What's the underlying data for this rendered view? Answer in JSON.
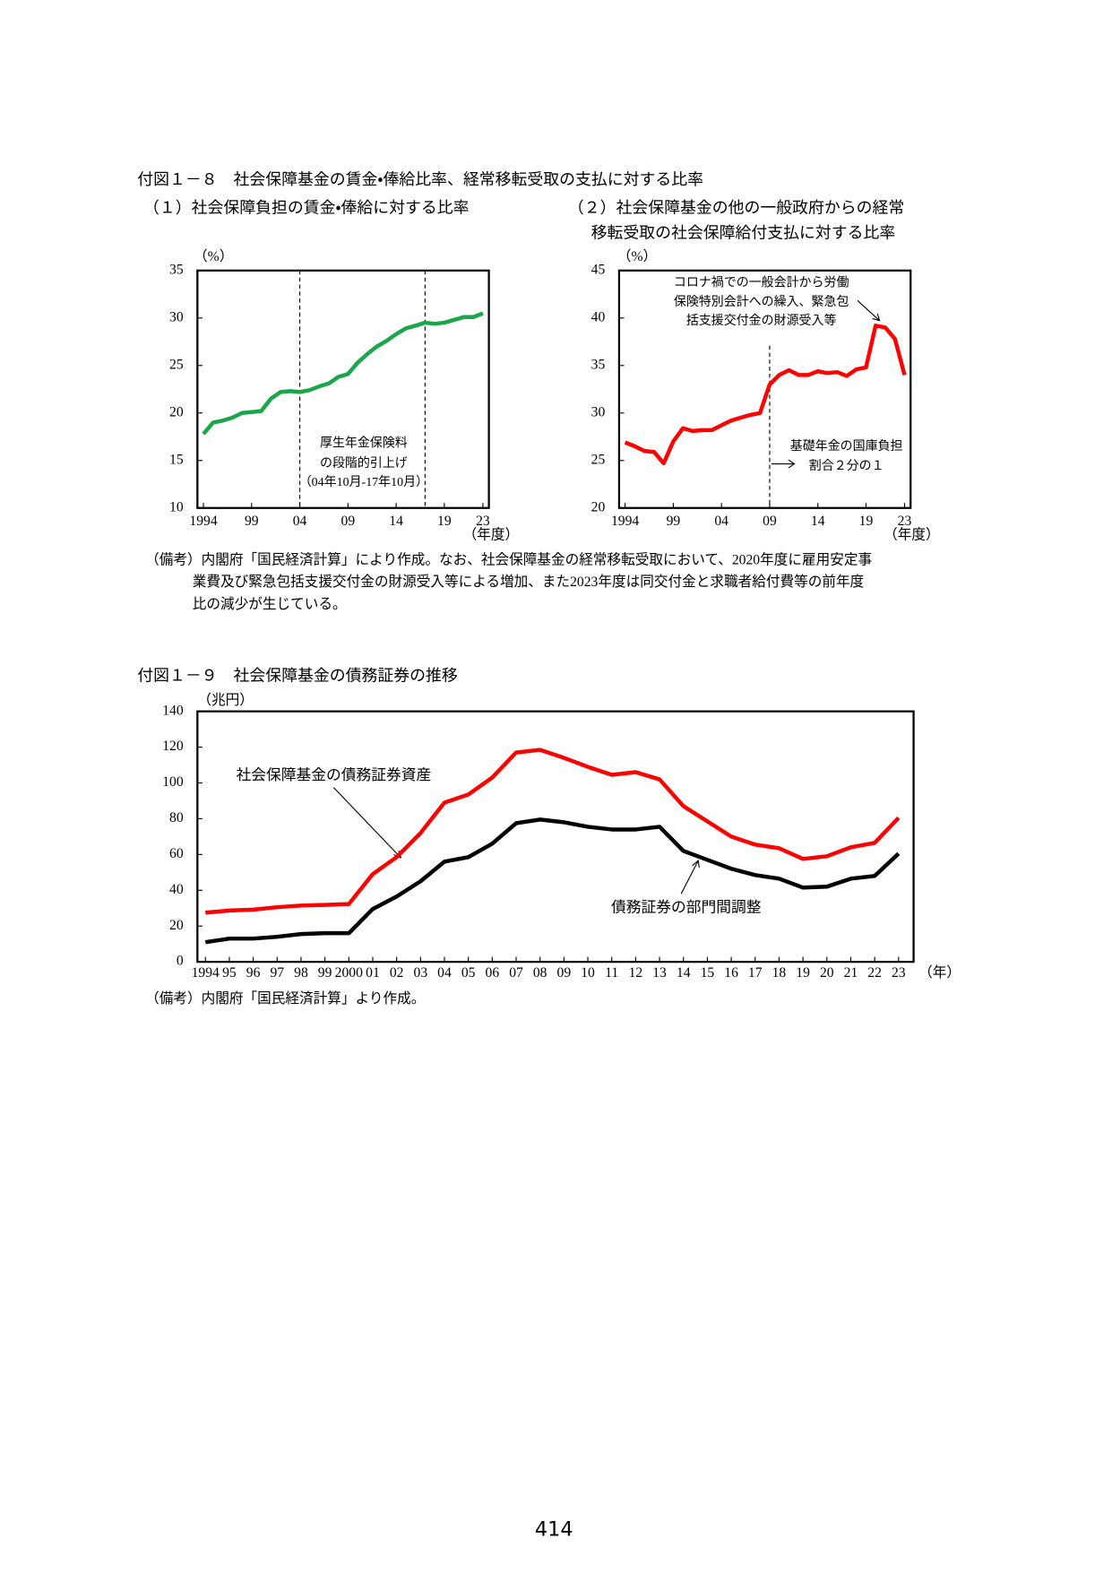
{
  "figure_8_title": "付図１－８　社会保障基金の賃金・俸給比率、経常移転受取の支払に対する比率",
  "notes_8": [
    "（備考）内閣府「国民経済計算」により作成。なお、社会保障基金の経常移転受取において、2020年度に雇用安定事",
    "業費及び緊急包括支援交付金の財源受入等による増加、また2023年度は同交付金と求職者給付費等の前年度",
    "比の減少が生じている。"
  ],
  "notes_9": "（備考）内閣府「国民経済計算」より作成。",
  "page_number": "414",
  "chart_data": [
    {
      "type": "line",
      "title": [
        "（１）社会保障負担の賃金・俸給に対する比率"
      ],
      "y_unit": "（%）",
      "x_unit": "（年度）",
      "x": [
        1994,
        1995,
        1996,
        1997,
        1998,
        1999,
        2000,
        2001,
        2002,
        2003,
        2004,
        2005,
        2006,
        2007,
        2008,
        2009,
        2010,
        2011,
        2012,
        2013,
        2014,
        2015,
        2016,
        2017,
        2018,
        2019,
        2020,
        2021,
        2022,
        2023
      ],
      "xlim": [
        1994,
        2023
      ],
      "xticks": [
        {
          "value": 1994,
          "label": "1994"
        },
        {
          "value": 1999,
          "label": "99"
        },
        {
          "value": 2004,
          "label": "04"
        },
        {
          "value": 2009,
          "label": "09"
        },
        {
          "value": 2014,
          "label": "14"
        },
        {
          "value": 2019,
          "label": "19"
        },
        {
          "value": 2023,
          "label": "23"
        }
      ],
      "ylim": [
        10,
        35
      ],
      "yticks": [
        10,
        15,
        20,
        25,
        30,
        35
      ],
      "reference_lines": [
        2004,
        2017
      ],
      "series": [
        {
          "color": "#1aa64a",
          "values": [
            17.8,
            19.0,
            19.2,
            19.5,
            20.0,
            20.1,
            20.2,
            21.5,
            22.2,
            22.3,
            22.2,
            22.4,
            22.8,
            23.1,
            23.8,
            24.1,
            25.3,
            26.2,
            27.0,
            27.6,
            28.3,
            28.9,
            29.2,
            29.5,
            29.4,
            29.5,
            29.8,
            30.1,
            30.1,
            30.5
          ]
        }
      ],
      "annotations": [
        [
          "厚生年金保険料",
          "の段階的引上げ",
          "（04年10月-17年10月）"
        ]
      ]
    },
    {
      "type": "line",
      "title": [
        "（２）社会保障基金の他の一般政府からの経常",
        "移転受取の社会保障給付支払に対する比率"
      ],
      "y_unit": "（%）",
      "x_unit": "（年度）",
      "x": [
        1994,
        1995,
        1996,
        1997,
        1998,
        1999,
        2000,
        2001,
        2002,
        2003,
        2004,
        2005,
        2006,
        2007,
        2008,
        2009,
        2010,
        2011,
        2012,
        2013,
        2014,
        2015,
        2016,
        2017,
        2018,
        2019,
        2020,
        2021,
        2022,
        2023
      ],
      "xlim": [
        1994,
        2023
      ],
      "xticks": [
        {
          "value": 1994,
          "label": "1994"
        },
        {
          "value": 1999,
          "label": "99"
        },
        {
          "value": 2004,
          "label": "04"
        },
        {
          "value": 2009,
          "label": "09"
        },
        {
          "value": 2014,
          "label": "14"
        },
        {
          "value": 2019,
          "label": "19"
        },
        {
          "value": 2023,
          "label": "23"
        }
      ],
      "ylim": [
        20,
        45
      ],
      "yticks": [
        20,
        25,
        30,
        35,
        40,
        45
      ],
      "reference_lines": [
        2009
      ],
      "series": [
        {
          "color": "#ff0000",
          "values": [
            26.9,
            26.5,
            26.0,
            25.9,
            24.7,
            27.0,
            28.4,
            28.1,
            28.2,
            28.2,
            28.7,
            29.2,
            29.5,
            29.8,
            30.0,
            33.0,
            34.0,
            34.5,
            34.0,
            34.0,
            34.4,
            34.2,
            34.3,
            33.9,
            34.6,
            34.8,
            39.2,
            39.0,
            37.8,
            34.0
          ]
        }
      ],
      "annotations": [
        [
          "コロナ禍での一般会計から労働",
          "保険特別会計への繰入、緊急包",
          "括支援交付金の財源受入等"
        ],
        [
          "基礎年金の国庫負担",
          "割合２分の１"
        ]
      ]
    },
    {
      "type": "line",
      "title": [
        "付図１－９　社会保障基金の債務証券の推移"
      ],
      "y_unit": "（兆円）",
      "x_unit": "（年）",
      "categories": [
        "1994",
        "95",
        "96",
        "97",
        "98",
        "99",
        "2000",
        "01",
        "02",
        "03",
        "04",
        "05",
        "06",
        "07",
        "08",
        "09",
        "10",
        "11",
        "12",
        "13",
        "14",
        "15",
        "16",
        "17",
        "18",
        "19",
        "20",
        "21",
        "22",
        "23"
      ],
      "ylim": [
        0,
        140
      ],
      "yticks": [
        0,
        20,
        40,
        60,
        80,
        100,
        120,
        140
      ],
      "series": [
        {
          "name": "社会保障基金の債務証券資産",
          "color": "#ff0000",
          "values": [
            27.5,
            28.7,
            29.2,
            30.5,
            31.5,
            31.8,
            32.3,
            49,
            58.5,
            72,
            89,
            93.5,
            103,
            117,
            118.5,
            114,
            109,
            104.5,
            106,
            102,
            87,
            78.5,
            70,
            65.5,
            63.5,
            57.5,
            59,
            64,
            66.5,
            80.5
          ]
        },
        {
          "name": "債務証券の部門間調整",
          "color": "#000000",
          "values": [
            11,
            13,
            13,
            14,
            15.5,
            16,
            16,
            29.5,
            36.5,
            45,
            56,
            58.5,
            66,
            77.5,
            79.5,
            78,
            75.5,
            74,
            74,
            75.5,
            62,
            57,
            52,
            48.5,
            46.5,
            41.5,
            42,
            46.5,
            48,
            60.5
          ]
        }
      ]
    }
  ]
}
